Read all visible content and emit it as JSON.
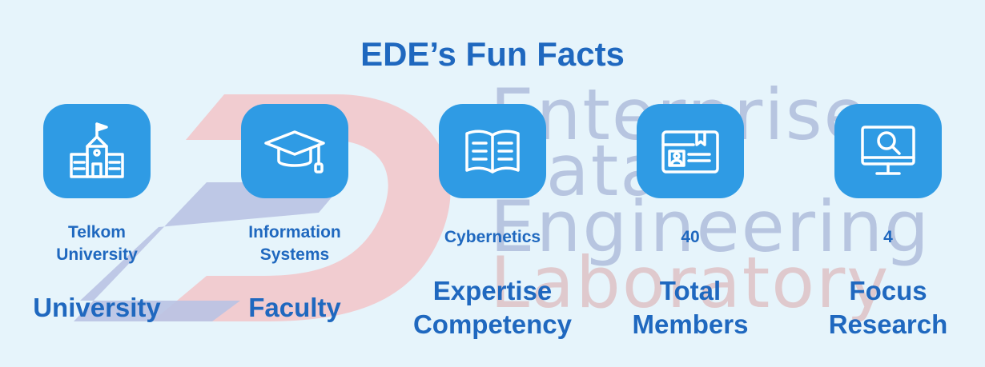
{
  "title": "EDE’s Fun Facts",
  "watermark": {
    "line1": "Enterprise",
    "line2": "Data",
    "line3": "Engineering",
    "line4": "Laboratory"
  },
  "facts": [
    {
      "icon": "university-building-icon",
      "value": "Telkom\nUniversity",
      "label": "University"
    },
    {
      "icon": "graduation-cap-icon",
      "value": "Information\nSystems",
      "label": "Faculty"
    },
    {
      "icon": "open-book-icon",
      "value": "Cybernetics",
      "label": "Expertise\nCompetency"
    },
    {
      "icon": "id-card-icon",
      "value": "40",
      "label": "Total\nMembers"
    },
    {
      "icon": "monitor-search-icon",
      "value": "4",
      "label": "Focus\nResearch"
    }
  ],
  "colors": {
    "background": "#e6f4fb",
    "accent": "#1f68bf",
    "icon_tile": "#2f9be4",
    "logo_red": "#f2c4c8",
    "logo_blue": "#b9c3e3"
  }
}
